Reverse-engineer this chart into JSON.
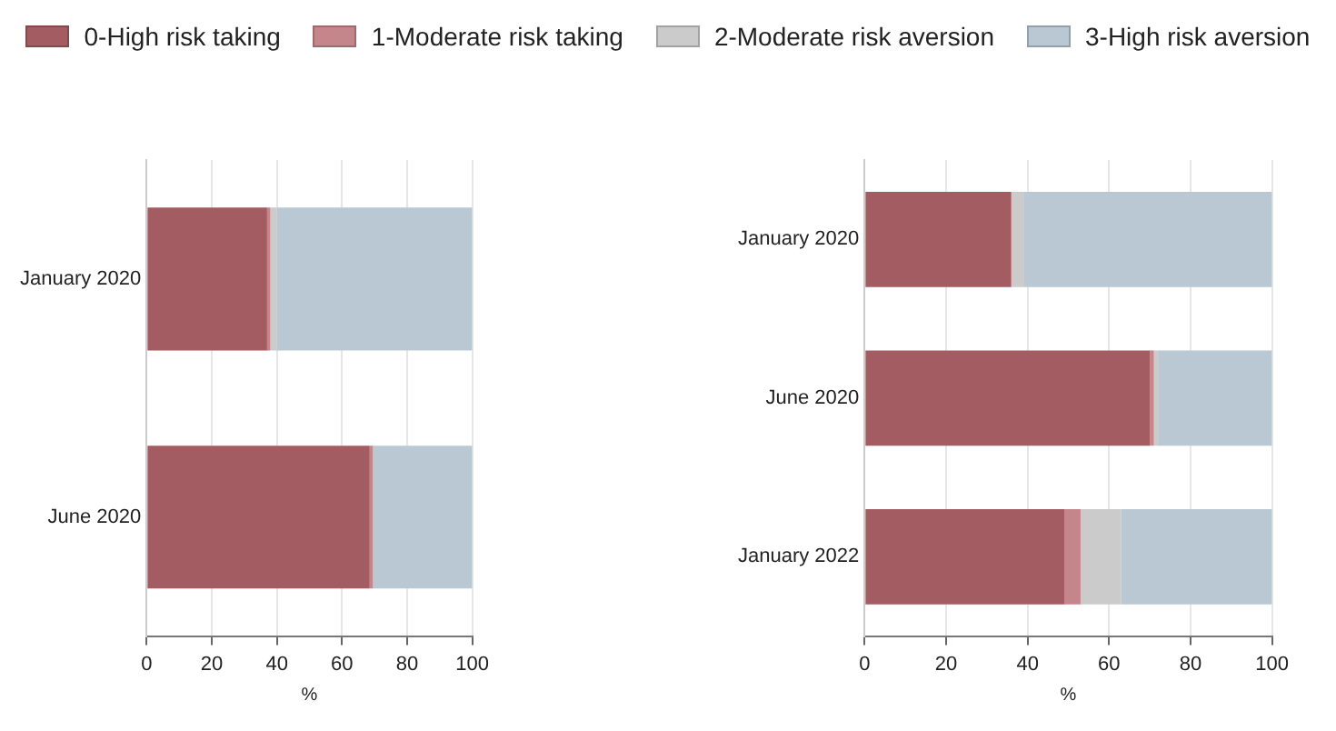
{
  "chart_data": [
    {
      "type": "bar",
      "orientation": "horizontal",
      "stacked": true,
      "categories": [
        "January 2020",
        "June 2020"
      ],
      "xlabel": "%",
      "xlim": [
        0,
        100
      ],
      "xticks": [
        0,
        20,
        40,
        60,
        80,
        100
      ],
      "grid": "x",
      "legend": "top",
      "series": [
        {
          "name": "0-High risk taking",
          "color": "#a35c62",
          "values": [
            37,
            68.5
          ]
        },
        {
          "name": "1-Moderate risk taking",
          "color": "#c4868b",
          "values": [
            1,
            1
          ]
        },
        {
          "name": "2-Moderate risk aversion",
          "color": "#cbcbcb",
          "values": [
            2,
            null
          ]
        },
        {
          "name": "3-High risk aversion",
          "color": "#b9c8d3",
          "values": [
            60,
            30.5
          ]
        }
      ]
    },
    {
      "type": "bar",
      "orientation": "horizontal",
      "stacked": true,
      "categories": [
        "January 2020",
        "June 2020",
        "January 2022"
      ],
      "xlabel": "%",
      "xlim": [
        0,
        100
      ],
      "xticks": [
        0,
        20,
        40,
        60,
        80,
        100
      ],
      "grid": "x",
      "series": [
        {
          "color": "#a35c62",
          "values": [
            36,
            70,
            49
          ]
        },
        {
          "color": "#c4868b",
          "values": [
            null,
            1,
            4
          ]
        },
        {
          "color": "#cbcbcb",
          "values": [
            3,
            1,
            10
          ]
        },
        {
          "color": "#b9c8d3",
          "values": [
            61,
            28,
            37
          ]
        }
      ]
    }
  ]
}
